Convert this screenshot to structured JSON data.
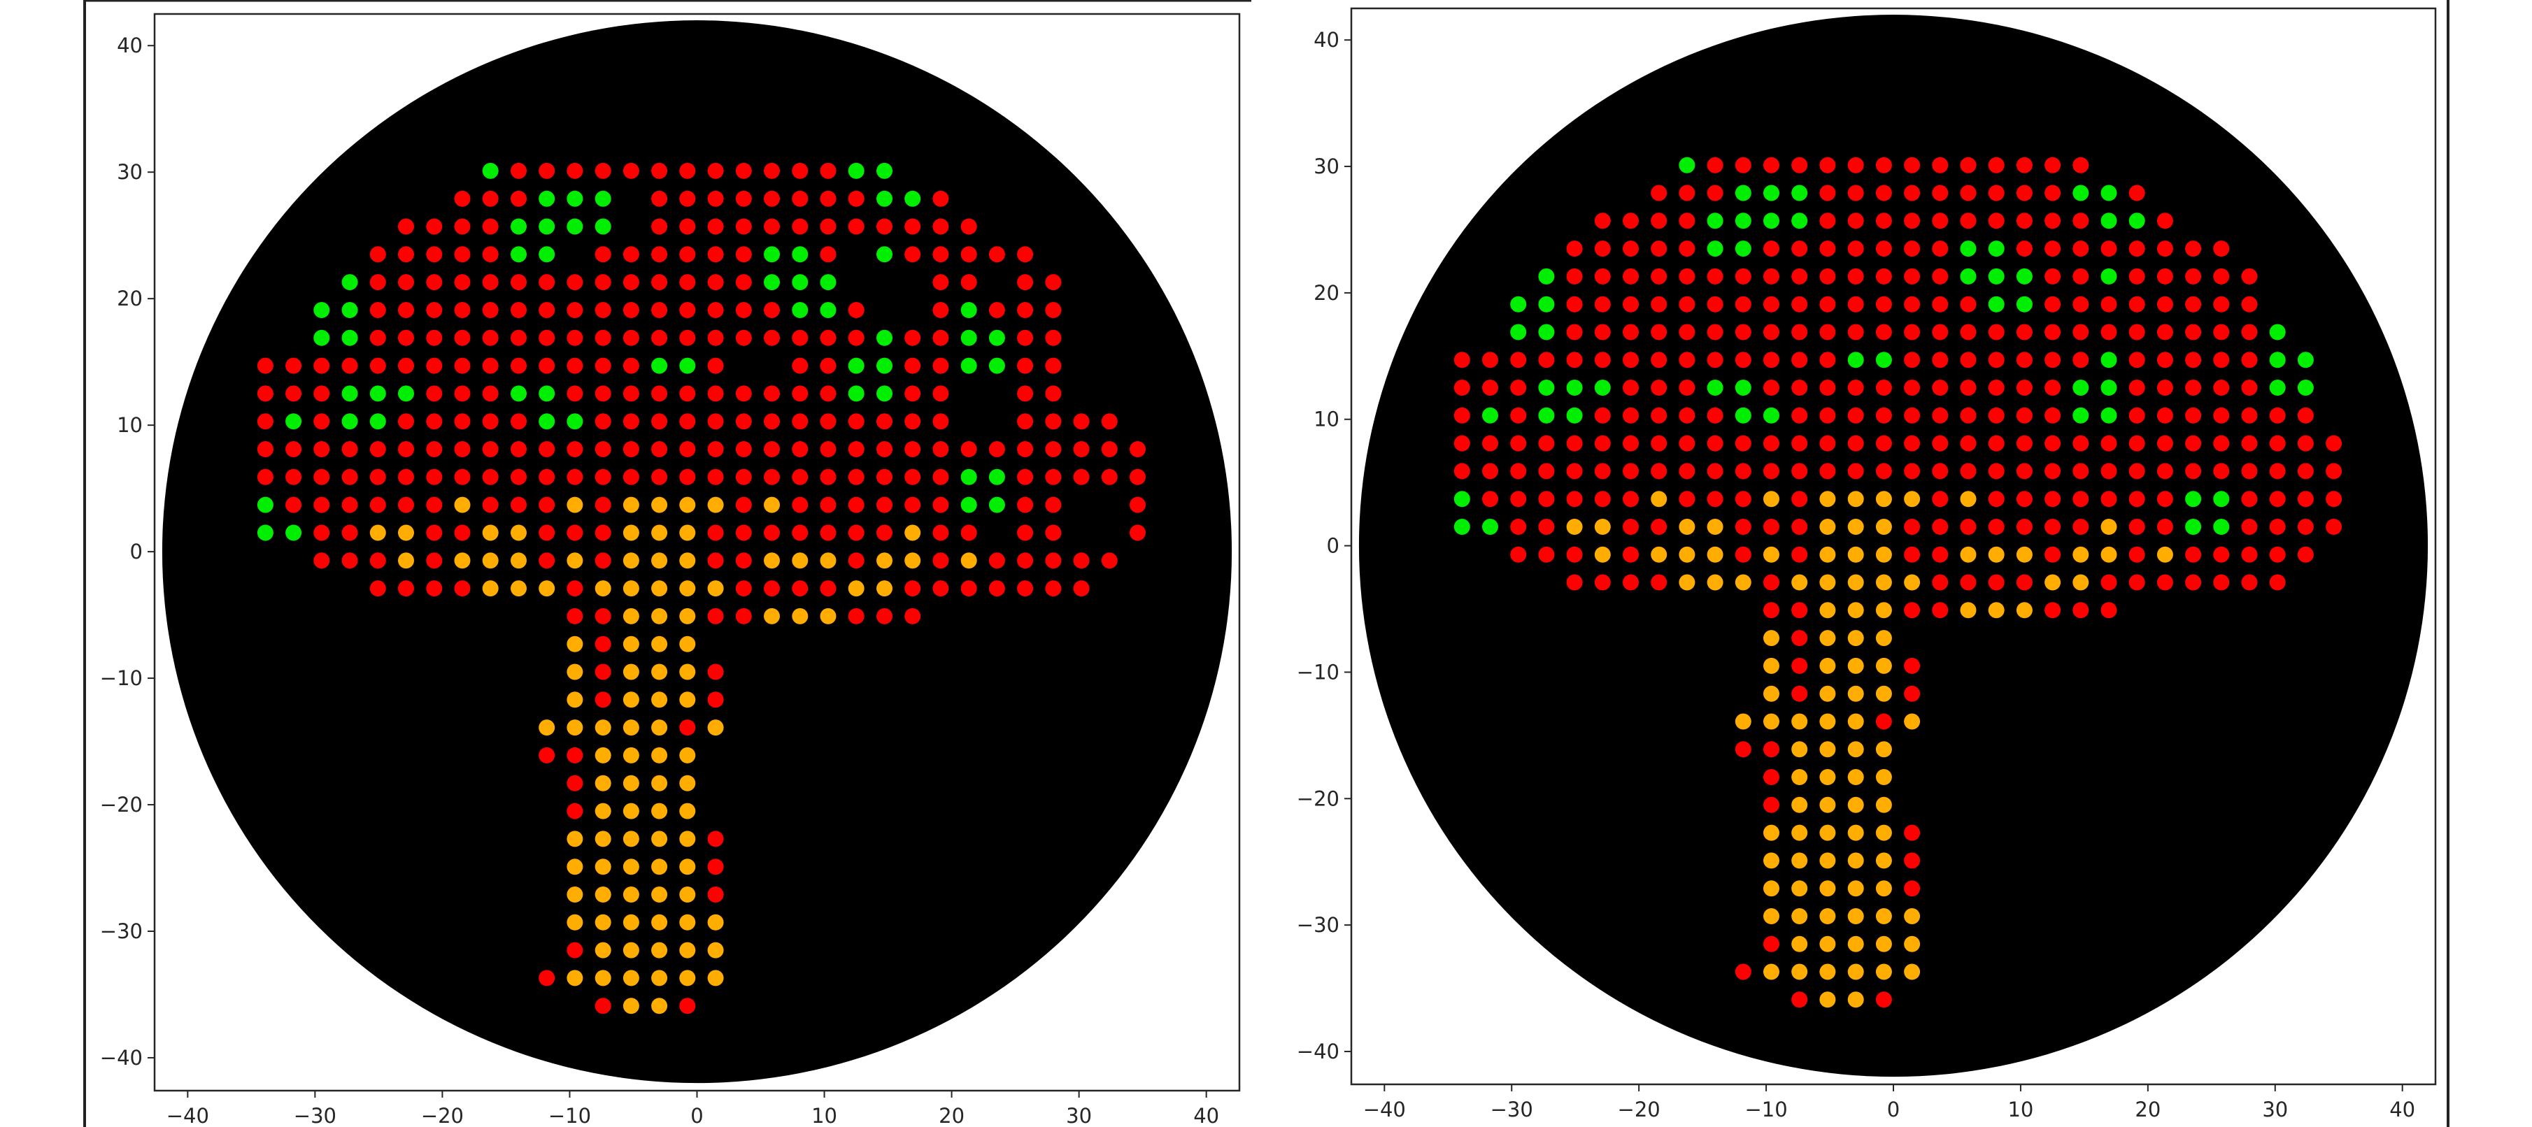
{
  "chart_data": [
    {
      "type": "scatter",
      "title": "",
      "xlabel": "",
      "ylabel": "",
      "xlim": [
        -42.6,
        42.6
      ],
      "ylim": [
        -42.6,
        42.5
      ],
      "xticks": [
        "−40",
        "−30",
        "−20",
        "−10",
        "0",
        "10",
        "20",
        "30",
        "40"
      ],
      "xtick_values": [
        -40,
        -30,
        -20,
        -10,
        0,
        10,
        20,
        30,
        40
      ],
      "yticks": [
        "−40",
        "−30",
        "−20",
        "−10",
        "0",
        "10",
        "20",
        "30",
        "40"
      ],
      "ytick_values": [
        -40,
        -30,
        -20,
        -10,
        0,
        10,
        20,
        30,
        40
      ],
      "grid": false,
      "background_disc": {
        "center": [
          0,
          0
        ],
        "radius": 42,
        "color": "#000000"
      },
      "point_grid": {
        "x_first": -33.9,
        "x_step": 2.21,
        "y_first": 30.1,
        "y_step": -2.2
      },
      "color_codes": {
        "R": "#ff0000",
        "G": "#00ee00",
        "Y": "#ffad00"
      },
      "rows": [
        "........GRRRRRRRRRRRRGG.........",
        ".......RRRGGG.RRRRRRRRGGR.......",
        ".....RRRRGGGG.RRRRRRRRRRRR......",
        "....RRRRRGG.RRRRRRGGR.GRRRRR....",
        "...GRRRRRRRRRRRRRRGGG...RR.RR...",
        "..GGRRRRRRRRRRRRRRRGGR..RGRRR...",
        "..GGRRRRRRRRRRRRRRRRRRGRRGGRR...",
        "RRRRRRRRRRRRRRGGR..RRGGRRGGRR...",
        "RRRGGGRRRGGRRRRRRRRRRGGRR..RR...",
        "RGRGGRRRRRGGRRRRRRRRRRRRR..RRRR.",
        "RRRRRRRRRRRRRRRRRRRRRRRRRRRRRRRR",
        "RRRRRRRRRRRRRRRRRRRRRRRRRGGRRRRR",
        "GRRRRRRYRRRYRYYYYRYRRRRRRGGRR..R",
        "GGRRYYRRYYRRRYYYRRRRRRRYRR.RR..R",
        "..RRRYRYYYRYRYYYRRYYYRYYRYRRRRR.",
        "....RRRRYYYRYYYYYRRRRYYRRRRRRR..",
        "...........RRYYYRRYYYRRR........",
        "...........YRYYY................",
        "...........YRYYYR...............",
        "...........YRYYYR...............",
        "..........YYYYYRY...............",
        "..........RRYYYY................",
        "...........RYYYY................",
        "...........RYYYY................",
        "...........YYYYYR...............",
        "...........YYYYYR...............",
        "...........YYYYYR...............",
        "...........YYYYYY...............",
        "...........RYYYYY...............",
        "..........RYYYYYY...............",
        "............RYYR................"
      ]
    },
    {
      "type": "scatter",
      "title": "",
      "xlabel": "",
      "ylabel": "",
      "xlim": [
        -42.6,
        42.6
      ],
      "ylim": [
        -42.6,
        42.5
      ],
      "xticks": [
        "−40",
        "−30",
        "−20",
        "−10",
        "0",
        "10",
        "20",
        "30",
        "40"
      ],
      "xtick_values": [
        -40,
        -30,
        -20,
        -10,
        0,
        10,
        20,
        30,
        40
      ],
      "yticks": [
        "−40",
        "−30",
        "−20",
        "−10",
        "0",
        "10",
        "20",
        "30",
        "40"
      ],
      "ytick_values": [
        -40,
        -30,
        -20,
        -10,
        0,
        10,
        20,
        30,
        40
      ],
      "grid": false,
      "background_disc": {
        "center": [
          0,
          0
        ],
        "radius": 42,
        "color": "#000000"
      },
      "point_grid": {
        "x_first": -33.9,
        "x_step": 2.21,
        "y_first": 30.1,
        "y_step": -2.2
      },
      "color_codes": {
        "R": "#ff0000",
        "G": "#00ee00",
        "Y": "#ffad00"
      },
      "rows": [
        "........GRRRRRRRRRRRRRR.........",
        ".......RRRGGGRRRRRRRRRGGR.......",
        ".....RRRRGGGGRRRRRRRRRRGGR......",
        "....RRRRRGGRRRRRRRGGRRRRRRRR....",
        "...GRRRRRRRRRRRRRRGGGRRGRRRRR...",
        "..GGRRRRRRRRRRRRRRRGGRRRRRRRR...",
        "..GGRRRRRRRRRRRRRRRRRRRRRRRRRG..",
        "RRRRRRRRRRRRRRGGRRRRRRRGRRRRRGG.",
        "RRRGGGRRRGGRRRRRRRRRRRGGRRRRRGG.",
        "RGRGGRRRRRGGRRRRRRRRRRGGRRRRRRR.",
        "RRRRRRRRRRRRRRRRRRRRRRRRRRRRRRRR",
        "RRRRRRRRRRRRRRRRRRRRRRRRRRRRRRRR",
        "GRRRRRRYRRRYRYYYYRYRRRRRRRGGRRRR",
        "GGRRYYRRYYRRRYYYRRRRRRRYRRGGRRRR",
        "..RRRYRYYYRYRYYYRRYYYRYYRYRRRRR.",
        "....RRRRYYYRYYYYYRRRRYYRRRRRRR..",
        "...........RRYYYRRYYYRRR........",
        "...........YRYYY................",
        "...........YRYYYR...............",
        "...........YRYYYR...............",
        "..........YYYYYRY...............",
        "..........RRYYYY................",
        "...........RYYYY................",
        "...........RYYYY................",
        "...........YYYYYR...............",
        "...........YYYYYR...............",
        "...........YYYYYR...............",
        "...........YYYYYY...............",
        "...........RYYYYY...............",
        "..........RYYYYYY...............",
        "............RYYR................"
      ]
    }
  ]
}
